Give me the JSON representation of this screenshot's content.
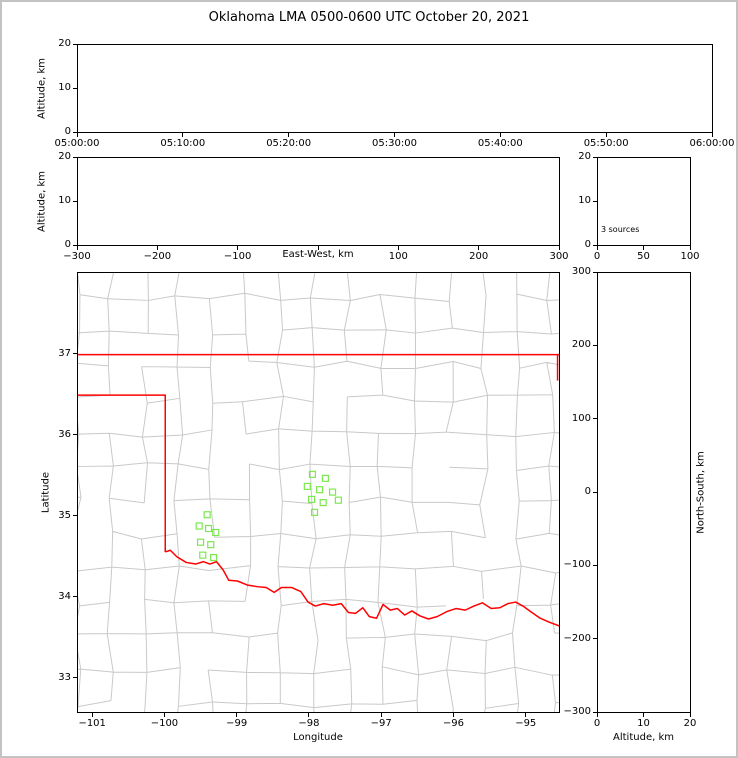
{
  "title": "Oklahoma LMA 0500-0600 UTC October 20, 2021",
  "colors": {
    "frame": "#000000",
    "outer_border": "#c3c3c3",
    "state_border": "#ff0000",
    "county_lines": "#c9c9c9",
    "stations": "#7be84e"
  },
  "panels": {
    "time_altitude": {
      "ylabel": "Altitude, km"
    },
    "ew_altitude": {
      "xlabel": "East-West, km",
      "ylabel": "Altitude, km"
    },
    "alt_histogram": {
      "annotation": "3 sources"
    },
    "map": {
      "xlabel": "Longitude",
      "ylabel": "Latitude"
    },
    "ns_altitude": {
      "xlabel": "Altitude, km",
      "ylabel": "North-South, km"
    }
  },
  "chart_data": [
    {
      "type": "scatter",
      "panel": "altitude-vs-time",
      "ylabel": "Altitude, km",
      "xlim": [
        0,
        3600
      ],
      "ylim": [
        0,
        20
      ],
      "xticks": [
        0,
        600,
        1200,
        1800,
        2400,
        3000,
        3600
      ],
      "xtick_labels": [
        "05:00:00",
        "05:10:00",
        "05:20:00",
        "05:30:00",
        "05:40:00",
        "05:50:00",
        "06:00:00"
      ],
      "yticks": [
        0,
        10,
        20
      ],
      "ytick_labels": [
        "0",
        "10",
        "20"
      ],
      "points": []
    },
    {
      "type": "scatter",
      "panel": "altitude-vs-east-west",
      "xlabel": "East-West, km",
      "ylabel": "Altitude, km",
      "xlim": [
        -300,
        300
      ],
      "ylim": [
        0,
        20
      ],
      "xticks": [
        -300,
        -200,
        -100,
        0,
        100,
        200,
        300
      ],
      "xtick_labels": [
        "−300",
        "−200",
        "−100",
        "",
        "100",
        "200",
        "300"
      ],
      "yticks": [
        0,
        10,
        20
      ],
      "ytick_labels": [
        "0",
        "10",
        "20"
      ],
      "points": []
    },
    {
      "type": "scatter",
      "panel": "altitude-source-histogram",
      "xlim": [
        0,
        100
      ],
      "ylim": [
        0,
        20
      ],
      "xticks": [
        0,
        50,
        100
      ],
      "xtick_labels": [
        "0",
        "50",
        "100"
      ],
      "yticks": [
        0,
        10,
        20
      ],
      "ytick_labels": [
        "0",
        "10",
        "20"
      ],
      "annotation": "3 sources",
      "points": []
    },
    {
      "type": "scatter",
      "panel": "plan-view-map",
      "xlabel": "Longitude",
      "ylabel": "Latitude",
      "xlim": [
        -101.21,
        -94.54
      ],
      "ylim": [
        32.58,
        38.01
      ],
      "xticks": [
        -101,
        -100,
        -99,
        -98,
        -97,
        -96,
        -95
      ],
      "xtick_labels": [
        "−101",
        "−100",
        "−99",
        "−98",
        "−97",
        "−96",
        "−95"
      ],
      "yticks": [
        33,
        34,
        35,
        36,
        37
      ],
      "ytick_labels": [
        "33",
        "34",
        "35",
        "36",
        "37"
      ],
      "series": [
        {
          "name": "lma-stations",
          "marker": "open-square",
          "color": "#7be84e",
          "points": [
            [
              -99.42,
              35.02
            ],
            [
              -99.53,
              34.88
            ],
            [
              -99.4,
              34.85
            ],
            [
              -99.3,
              34.8
            ],
            [
              -99.51,
              34.68
            ],
            [
              -99.37,
              34.65
            ],
            [
              -99.48,
              34.52
            ],
            [
              -99.33,
              34.49
            ],
            [
              -97.96,
              35.52
            ],
            [
              -97.78,
              35.47
            ],
            [
              -98.03,
              35.37
            ],
            [
              -97.86,
              35.33
            ],
            [
              -97.68,
              35.3
            ],
            [
              -97.97,
              35.21
            ],
            [
              -97.81,
              35.17
            ],
            [
              -97.6,
              35.2
            ],
            [
              -97.93,
              35.05
            ]
          ]
        }
      ],
      "state_border": {
        "color": "#ff0000",
        "polylines": [
          [
            [
              -101.21,
              37.0
            ],
            [
              -94.54,
              37.0
            ]
          ],
          [
            [
              -101.21,
              36.5
            ],
            [
              -100.0,
              36.5
            ],
            [
              -100.0,
              34.56
            ]
          ],
          [
            [
              -94.56,
              37.0
            ],
            [
              -94.56,
              36.68
            ]
          ],
          [
            [
              -100.0,
              34.56
            ],
            [
              -99.93,
              34.58
            ],
            [
              -99.84,
              34.5
            ],
            [
              -99.71,
              34.43
            ],
            [
              -99.58,
              34.41
            ],
            [
              -99.47,
              34.44
            ],
            [
              -99.38,
              34.41
            ],
            [
              -99.29,
              34.44
            ],
            [
              -99.2,
              34.34
            ],
            [
              -99.12,
              34.21
            ],
            [
              -99.0,
              34.2
            ],
            [
              -98.86,
              34.15
            ],
            [
              -98.72,
              34.13
            ],
            [
              -98.6,
              34.12
            ],
            [
              -98.49,
              34.06
            ],
            [
              -98.39,
              34.12
            ],
            [
              -98.25,
              34.12
            ],
            [
              -98.12,
              34.07
            ],
            [
              -98.02,
              33.94
            ],
            [
              -97.92,
              33.89
            ],
            [
              -97.8,
              33.92
            ],
            [
              -97.68,
              33.9
            ],
            [
              -97.56,
              33.92
            ],
            [
              -97.46,
              33.81
            ],
            [
              -97.36,
              33.8
            ],
            [
              -97.26,
              33.87
            ],
            [
              -97.17,
              33.76
            ],
            [
              -97.07,
              33.74
            ],
            [
              -96.98,
              33.91
            ],
            [
              -96.88,
              33.84
            ],
            [
              -96.78,
              33.86
            ],
            [
              -96.68,
              33.78
            ],
            [
              -96.58,
              33.83
            ],
            [
              -96.47,
              33.77
            ],
            [
              -96.35,
              33.73
            ],
            [
              -96.23,
              33.76
            ],
            [
              -96.1,
              33.82
            ],
            [
              -95.97,
              33.86
            ],
            [
              -95.84,
              33.84
            ],
            [
              -95.72,
              33.89
            ],
            [
              -95.6,
              33.93
            ],
            [
              -95.48,
              33.86
            ],
            [
              -95.36,
              33.87
            ],
            [
              -95.25,
              33.92
            ],
            [
              -95.14,
              33.94
            ],
            [
              -95.04,
              33.89
            ],
            [
              -94.93,
              33.82
            ],
            [
              -94.8,
              33.74
            ],
            [
              -94.67,
              33.69
            ],
            [
              -94.52,
              33.64
            ]
          ]
        ]
      }
    },
    {
      "type": "scatter",
      "panel": "north-south-vs-altitude",
      "xlabel": "Altitude, km",
      "ylabel": "North-South, km",
      "xlim": [
        0,
        20
      ],
      "ylim": [
        -300,
        300
      ],
      "xticks": [
        0,
        10,
        20
      ],
      "xtick_labels": [
        "0",
        "10",
        "20"
      ],
      "yticks": [
        300,
        200,
        100,
        0,
        -100,
        -200,
        -300
      ],
      "ytick_labels": [
        "300",
        "200",
        "100",
        "0",
        "−100",
        "−200",
        "−300"
      ],
      "points": []
    }
  ]
}
